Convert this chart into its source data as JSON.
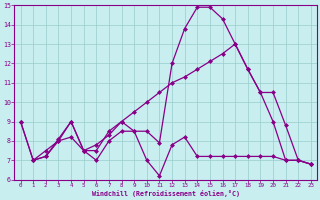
{
  "xlabel": "Windchill (Refroidissement éolien,°C)",
  "bg_color": "#c8eef0",
  "line_color": "#880088",
  "grid_color": "#99cccc",
  "xlim": [
    -0.5,
    23.5
  ],
  "ylim": [
    6,
    15
  ],
  "xticks": [
    0,
    1,
    2,
    3,
    4,
    5,
    6,
    7,
    8,
    9,
    10,
    11,
    12,
    13,
    14,
    15,
    16,
    17,
    18,
    19,
    20,
    21,
    22,
    23
  ],
  "yticks": [
    6,
    7,
    8,
    9,
    10,
    11,
    12,
    13,
    14,
    15
  ],
  "line1_x": [
    0,
    1,
    2,
    3,
    4,
    5,
    6,
    7,
    8,
    9,
    10,
    11,
    12,
    13,
    14,
    15,
    16,
    17,
    18,
    19,
    20,
    21,
    22,
    23
  ],
  "line1_y": [
    9.0,
    7.0,
    7.2,
    8.0,
    9.0,
    7.5,
    7.0,
    8.0,
    8.5,
    8.5,
    7.0,
    6.2,
    7.8,
    8.2,
    7.2,
    7.2,
    7.2,
    7.2,
    7.2,
    7.2,
    7.2,
    7.0,
    7.0,
    6.8
  ],
  "line2_x": [
    0,
    1,
    2,
    3,
    4,
    5,
    6,
    7,
    8,
    9,
    10,
    11,
    12,
    13,
    14,
    15,
    16,
    17,
    18,
    19,
    20,
    21,
    22,
    23
  ],
  "line2_y": [
    9.0,
    7.0,
    7.2,
    8.1,
    9.0,
    7.5,
    7.5,
    8.5,
    9.0,
    8.5,
    8.5,
    7.9,
    12.0,
    13.8,
    14.9,
    14.9,
    14.3,
    13.0,
    11.7,
    10.5,
    9.0,
    7.0,
    7.0,
    6.8
  ],
  "line3_x": [
    1,
    2,
    3,
    4,
    5,
    6,
    7,
    8,
    9,
    10,
    11,
    12,
    13,
    14,
    15,
    16,
    17,
    18,
    19,
    20,
    21,
    22,
    23
  ],
  "line3_y": [
    7.0,
    7.5,
    8.0,
    8.2,
    7.5,
    7.8,
    8.3,
    9.0,
    9.5,
    10.0,
    10.5,
    11.0,
    11.3,
    11.7,
    12.1,
    12.5,
    13.0,
    11.7,
    10.5,
    10.5,
    8.8,
    7.0,
    6.8
  ],
  "markersize": 2.5,
  "linewidth": 0.9
}
